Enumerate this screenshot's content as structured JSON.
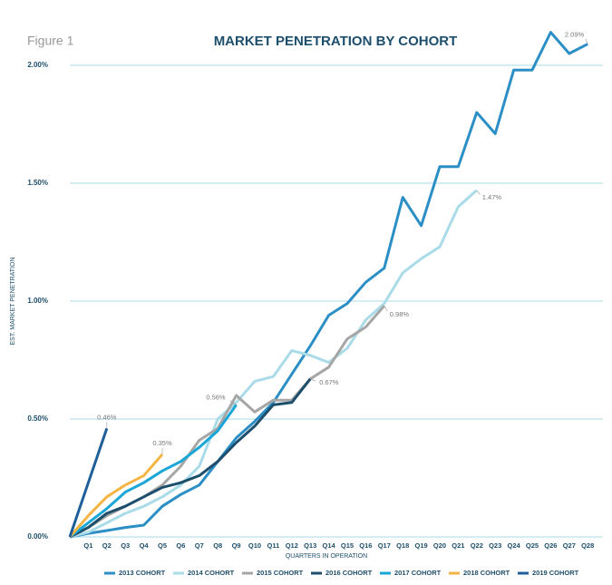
{
  "chart_data": {
    "type": "line",
    "figure_label": "Figure 1",
    "title": "MARKET PENETRATION BY COHORT",
    "x_label": "QUARTERS IN OPERATION",
    "y_label": "EST. MARKET PENETRATION",
    "categories": [
      null,
      "Q1",
      "Q2",
      "Q3",
      "Q4",
      "Q5",
      "Q6",
      "Q7",
      "Q8",
      "Q9",
      "Q10",
      "Q11",
      "Q12",
      "Q13",
      "Q14",
      "Q15",
      "Q16",
      "Q17",
      "Q18",
      "Q19",
      "Q20",
      "Q21",
      "Q22",
      "Q23",
      "Q24",
      "Q25",
      "Q26",
      "Q27",
      "Q28"
    ],
    "ylim": [
      0,
      2.2
    ],
    "yticks": [
      {
        "value": 0,
        "label": "0.00%"
      },
      {
        "value": 0.5,
        "label": "0.50%"
      },
      {
        "value": 1,
        "label": "1.00%"
      },
      {
        "value": 1.5,
        "label": "1.50%"
      },
      {
        "value": 2,
        "label": "2.00%"
      }
    ],
    "grid": true,
    "legend": "bottom",
    "series": [
      {
        "name": "2013 COHORT",
        "color": "#2b8fc6",
        "values": [
          0,
          0.015,
          0.027,
          0.04,
          0.05,
          0.13,
          0.18,
          0.22,
          0.32,
          0.42,
          0.49,
          0.57,
          0.69,
          0.81,
          0.94,
          0.99,
          1.08,
          1.14,
          1.44,
          1.32,
          1.57,
          1.57,
          1.8,
          1.71,
          1.98,
          1.98,
          2.14,
          2.05,
          2.09
        ],
        "value_labels": [
          null,
          null,
          null,
          null,
          null,
          null,
          null,
          null,
          null,
          null,
          null,
          null,
          null,
          null,
          null,
          null,
          null,
          null,
          null,
          null,
          null,
          null,
          null,
          null,
          null,
          null,
          null,
          null,
          "2.09%"
        ]
      },
      {
        "name": "2014 COHORT",
        "color": "#a9dbe8",
        "values": [
          0,
          0.02,
          0.06,
          0.1,
          0.13,
          0.17,
          0.22,
          0.3,
          0.5,
          0.57,
          0.66,
          0.68,
          0.79,
          0.77,
          0.74,
          0.8,
          0.92,
          0.99,
          1.12,
          1.18,
          1.23,
          1.4,
          1.47,
          null,
          null,
          null,
          null,
          null,
          null
        ],
        "value_labels": [
          null,
          null,
          null,
          null,
          null,
          null,
          null,
          null,
          null,
          null,
          null,
          null,
          null,
          null,
          null,
          null,
          null,
          null,
          null,
          null,
          null,
          null,
          "1.47%",
          null,
          null,
          null,
          null,
          null,
          null
        ]
      },
      {
        "name": "2015 COHORT",
        "color": "#a6a6a6",
        "values": [
          0,
          0.04,
          0.09,
          0.13,
          0.17,
          0.22,
          0.3,
          0.41,
          0.46,
          0.6,
          0.53,
          0.58,
          0.58,
          0.67,
          0.72,
          0.84,
          0.89,
          0.98,
          null,
          null,
          null,
          null,
          null,
          null,
          null,
          null,
          null,
          null,
          null
        ],
        "value_labels": [
          null,
          null,
          null,
          null,
          null,
          null,
          null,
          null,
          null,
          null,
          null,
          null,
          null,
          null,
          null,
          null,
          null,
          "0.98%",
          null,
          null,
          null,
          null,
          null,
          null,
          null,
          null,
          null,
          null,
          null
        ]
      },
      {
        "name": "2016 COHORT",
        "color": "#1d4e6b",
        "values": [
          0,
          0.04,
          0.1,
          0.13,
          0.17,
          0.21,
          0.23,
          0.26,
          0.32,
          0.4,
          0.47,
          0.56,
          0.57,
          0.67,
          null,
          null,
          null,
          null,
          null,
          null,
          null,
          null,
          null,
          null,
          null,
          null,
          null,
          null,
          null
        ],
        "value_labels": [
          null,
          null,
          null,
          null,
          null,
          null,
          null,
          null,
          null,
          null,
          null,
          null,
          null,
          "0.67%",
          null,
          null,
          null,
          null,
          null,
          null,
          null,
          null,
          null,
          null,
          null,
          null,
          null,
          null,
          null
        ]
      },
      {
        "name": "2017 COHORT",
        "color": "#1aa6d6",
        "values": [
          0,
          0.06,
          0.12,
          0.19,
          0.23,
          0.28,
          0.32,
          0.38,
          0.45,
          0.56,
          null,
          null,
          null,
          null,
          null,
          null,
          null,
          null,
          null,
          null,
          null,
          null,
          null,
          null,
          null,
          null,
          null,
          null,
          null
        ],
        "value_labels": [
          null,
          null,
          null,
          null,
          null,
          null,
          null,
          null,
          null,
          "0.56%",
          null,
          null,
          null,
          null,
          null,
          null,
          null,
          null,
          null,
          null,
          null,
          null,
          null,
          null,
          null,
          null,
          null,
          null,
          null
        ]
      },
      {
        "name": "2018 COHORT",
        "color": "#f5b546",
        "values": [
          0,
          0.09,
          0.17,
          0.22,
          0.26,
          0.35,
          null,
          null,
          null,
          null,
          null,
          null,
          null,
          null,
          null,
          null,
          null,
          null,
          null,
          null,
          null,
          null,
          null,
          null,
          null,
          null,
          null,
          null,
          null
        ],
        "value_labels": [
          null,
          null,
          null,
          null,
          null,
          "0.35%",
          null,
          null,
          null,
          null,
          null,
          null,
          null,
          null,
          null,
          null,
          null,
          null,
          null,
          null,
          null,
          null,
          null,
          null,
          null,
          null,
          null,
          null,
          null
        ]
      },
      {
        "name": "2019 COHORT",
        "color": "#1f5f99",
        "values": [
          0,
          0.23,
          0.46,
          null,
          null,
          null,
          null,
          null,
          null,
          null,
          null,
          null,
          null,
          null,
          null,
          null,
          null,
          null,
          null,
          null,
          null,
          null,
          null,
          null,
          null,
          null,
          null,
          null,
          null
        ],
        "value_labels": [
          null,
          null,
          "0.46%",
          null,
          null,
          null,
          null,
          null,
          null,
          null,
          null,
          null,
          null,
          null,
          null,
          null,
          null,
          null,
          null,
          null,
          null,
          null,
          null,
          null,
          null,
          null,
          null,
          null,
          null
        ]
      }
    ]
  }
}
